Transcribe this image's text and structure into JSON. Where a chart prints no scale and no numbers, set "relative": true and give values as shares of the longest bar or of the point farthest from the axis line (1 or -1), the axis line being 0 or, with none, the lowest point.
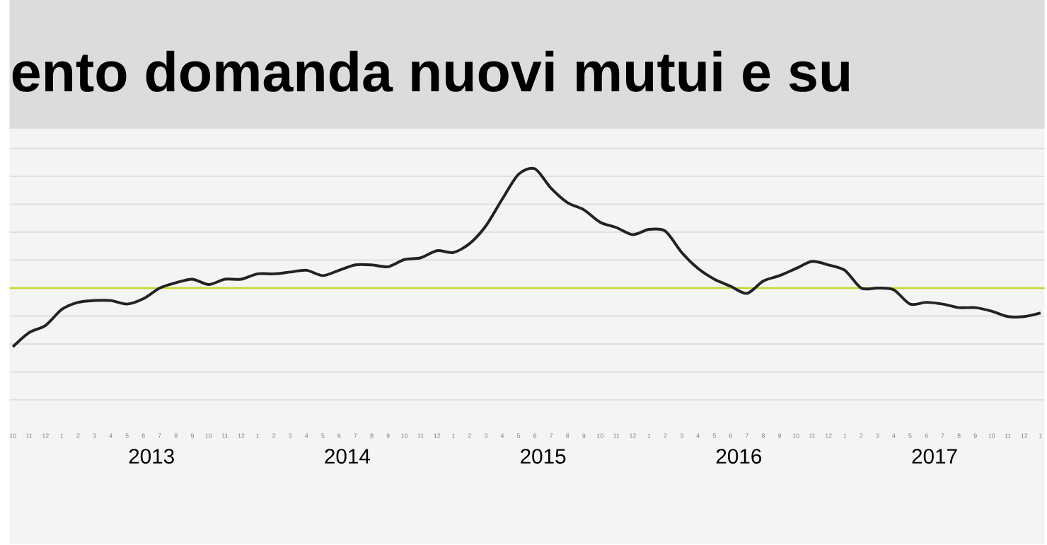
{
  "chart_data": {
    "type": "line",
    "title": "ento domanda nuovi mutui e su",
    "relative": true,
    "grid": "y",
    "categories": [
      "10",
      "11",
      "12",
      "1",
      "2",
      "3",
      "4",
      "5",
      "6",
      "7",
      "8",
      "9",
      "10",
      "11",
      "12",
      "1",
      "2",
      "3",
      "4",
      "5",
      "6",
      "7",
      "8",
      "9",
      "10",
      "11",
      "12",
      "1",
      "2",
      "3",
      "4",
      "5",
      "6",
      "7",
      "8",
      "9",
      "10",
      "11",
      "12",
      "1",
      "2",
      "3",
      "4",
      "5",
      "6",
      "7",
      "8",
      "9",
      "10",
      "11",
      "12",
      "1",
      "2",
      "3",
      "4",
      "5",
      "6",
      "7",
      "8",
      "9",
      "10",
      "11",
      "12",
      "1"
    ],
    "series": [
      {
        "color": "#222222",
        "values": [
          0,
          0.08,
          0.12,
          0.21,
          0.25,
          0.26,
          0.26,
          0.24,
          0.27,
          0.33,
          0.36,
          0.38,
          0.35,
          0.38,
          0.38,
          0.41,
          0.41,
          0.42,
          0.43,
          0.4,
          0.43,
          0.46,
          0.46,
          0.45,
          0.49,
          0.5,
          0.54,
          0.53,
          0.58,
          0.68,
          0.83,
          0.97,
          1,
          0.89,
          0.81,
          0.77,
          0.7,
          0.67,
          0.63,
          0.66,
          0.65,
          0.53,
          0.44,
          0.38,
          0.34,
          0.3,
          0.37,
          0.4,
          0.44,
          0.48,
          0.46,
          0.43,
          0.33,
          0.33,
          0.32,
          0.24,
          0.25,
          0.24,
          0.22,
          0.22,
          0.2,
          0.17,
          0.17,
          0.19
        ]
      }
    ],
    "ref_lines": [
      {
        "axis": "y",
        "value": 0.33,
        "color": "#c8d42a"
      }
    ],
    "annotations": [
      "2013",
      "2014",
      "2015",
      "2016",
      "2017"
    ]
  }
}
